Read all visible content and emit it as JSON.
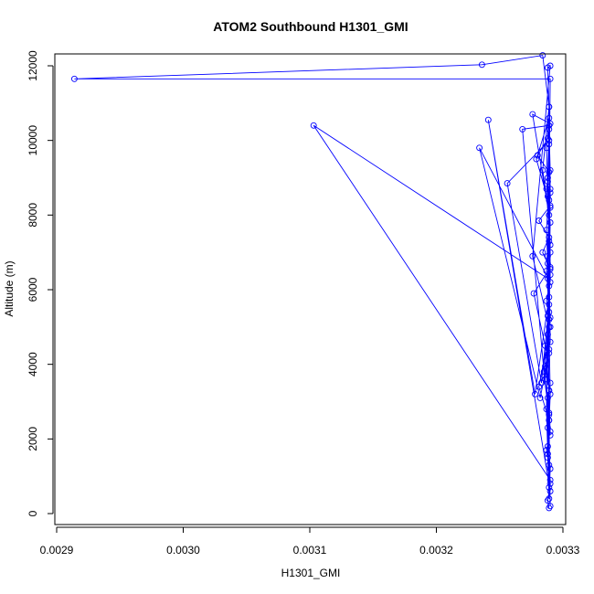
{
  "chart_data": {
    "type": "line",
    "title": "ATOM2 Southbound H1301_GMI",
    "xlabel": "H1301_GMI",
    "ylabel": "Altitude (m)",
    "xlim": [
      0.0029,
      0.0033
    ],
    "ylim": [
      0,
      12000
    ],
    "xticks": [
      0.0029,
      0.003,
      0.0031,
      0.0032,
      0.0033
    ],
    "xtick_labels": [
      "0.0029",
      "0.0030",
      "0.0031",
      "0.0032",
      "0.0033"
    ],
    "yticks": [
      0,
      2000,
      4000,
      6000,
      8000,
      10000,
      12000
    ],
    "ytick_labels": [
      "0",
      "2000",
      "4000",
      "6000",
      "8000",
      "10000",
      "12000"
    ],
    "grid": false,
    "legend": "none",
    "marker": "open-circle",
    "series": [
      {
        "color": "#0000ff",
        "x": [
          0.003289,
          0.003288,
          0.00329,
          0.003289,
          0.003287,
          0.00329,
          0.003289,
          0.003288,
          0.00329,
          0.003286,
          0.003289,
          0.003288,
          0.00329,
          0.003287,
          0.003289,
          0.00329,
          0.003284,
          0.003289,
          0.003281,
          0.00329,
          0.003287,
          0.003289,
          0.00328,
          0.003288,
          0.00329,
          0.003276,
          0.003289,
          0.003287,
          0.00329,
          0.003281,
          0.003289,
          0.003288,
          0.00329,
          0.003103,
          0.003288,
          0.003289,
          0.00329,
          0.003286,
          0.003289,
          0.003288,
          0.00329,
          0.003279,
          0.003289,
          0.003287,
          0.003289,
          0.00329,
          0.003285,
          0.003289,
          0.003288,
          0.00329,
          0.003241,
          0.003278,
          0.003289,
          0.003287,
          0.00329,
          0.003289,
          0.003288,
          0.00329,
          0.003234,
          0.003282,
          0.003289,
          0.003288,
          0.00329,
          0.003289,
          0.003256,
          0.003283,
          0.003289,
          0.00329,
          0.003288,
          0.003289,
          0.003268,
          0.003285,
          0.003289,
          0.00329,
          0.003288,
          0.003289,
          0.00329,
          0.003277,
          0.003286,
          0.003289,
          0.003288,
          0.00329,
          0.003289,
          0.003287,
          0.00329,
          0.003284,
          0.003289,
          0.003288,
          0.00329,
          0.003276,
          0.003289,
          0.00329,
          0.003288,
          0.003289,
          0.003287,
          0.00329,
          0.003289,
          0.00329,
          0.002914,
          0.003236,
          0.003284,
          0.003289,
          0.00329,
          0.003288,
          0.003289,
          0.00329
        ],
        "y": [
          150,
          350,
          800,
          1300,
          1700,
          2200,
          2650,
          3100,
          3500,
          3950,
          4400,
          4800,
          5250,
          5700,
          6100,
          6550,
          7000,
          7400,
          7850,
          8250,
          8700,
          9150,
          9600,
          10050,
          10450,
          10700,
          8000,
          6500,
          5000,
          3400,
          2500,
          1800,
          900,
          10400,
          6300,
          3300,
          2100,
          3600,
          5200,
          6700,
          8200,
          9500,
          10600,
          9800,
          7300,
          4600,
          3700,
          2700,
          1600,
          600,
          10550,
          3200,
          5800,
          7600,
          9200,
          10300,
          8900,
          6200,
          9800,
          3100,
          4300,
          6900,
          8600,
          10000,
          8850,
          3500,
          5600,
          7200,
          9000,
          10400,
          10300,
          3800,
          5400,
          7000,
          8500,
          9900,
          6600,
          5900,
          4500,
          3300,
          2300,
          1200,
          400,
          2800,
          7800,
          9200,
          10900,
          11950,
          12000,
          6900,
          5000,
          3200,
          1500,
          700,
          4100,
          6400,
          8400,
          11650,
          11650,
          12030,
          12280,
          10900,
          8700,
          5300,
          2500,
          200
        ]
      }
    ]
  }
}
